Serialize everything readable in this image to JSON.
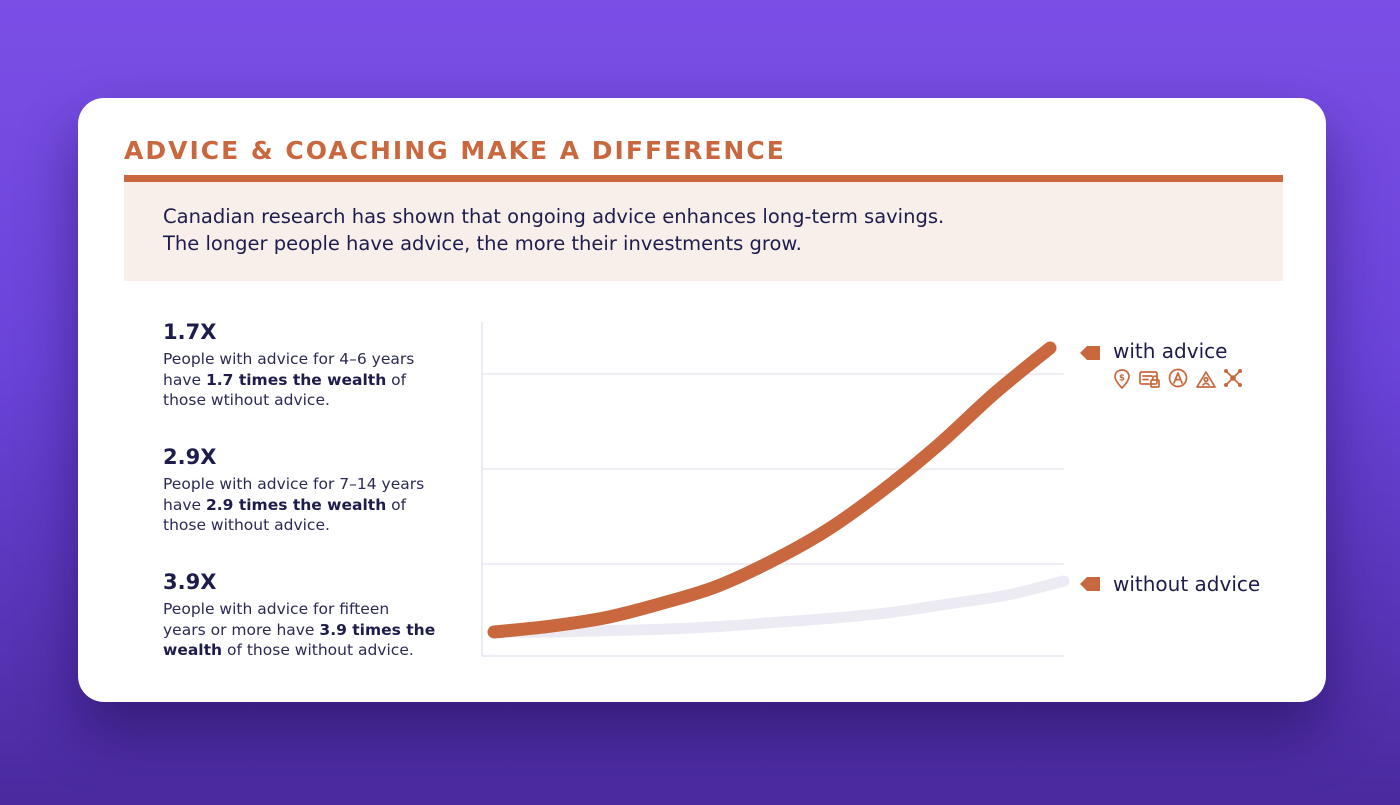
{
  "colors": {
    "accent": "#c9683e",
    "navy": "#1e1c4d",
    "intro_bg": "#f8eeea",
    "without_line": "#ecebf4",
    "grid": "#e6e4ee"
  },
  "header": {
    "title": "ADVICE & COACHING MAKE A DIFFERENCE"
  },
  "intro": {
    "line1": "Canadian research has shown that ongoing advice enhances long-term savings.",
    "line2": "The longer people have advice, the more their investments grow."
  },
  "stats": [
    {
      "value": "1.7X",
      "lines": [
        [
          {
            "t": "People with advice for 4–6 years",
            "b": false
          }
        ],
        [
          {
            "t": "have ",
            "b": false
          },
          {
            "t": "1.7 times the wealth",
            "b": true
          },
          {
            "t": " of",
            "b": false
          }
        ],
        [
          {
            "t": "those wtihout advice.",
            "b": false
          }
        ]
      ]
    },
    {
      "value": "2.9X",
      "lines": [
        [
          {
            "t": "People with advice for 7–14 years",
            "b": false
          }
        ],
        [
          {
            "t": "have ",
            "b": false
          },
          {
            "t": "2.9 times the wealth",
            "b": true
          },
          {
            "t": " of",
            "b": false
          }
        ],
        [
          {
            "t": "those without advice.",
            "b": false
          }
        ]
      ]
    },
    {
      "value": "3.9X",
      "lines": [
        [
          {
            "t": "People with advice for fifteen",
            "b": false
          }
        ],
        [
          {
            "t": "years or more have ",
            "b": false
          },
          {
            "t": "3.9 times the",
            "b": true
          }
        ],
        [
          {
            "t": "wealth",
            "b": true
          },
          {
            "t": " of those without advice.",
            "b": false
          }
        ]
      ]
    }
  ],
  "chart_data": {
    "type": "line",
    "x": [
      0,
      0.1,
      0.2,
      0.3,
      0.4,
      0.5,
      0.6,
      0.7,
      0.8,
      0.9,
      1.0
    ],
    "series": [
      {
        "name": "with advice",
        "color": "#c9683e",
        "values": [
          0.0,
          0.02,
          0.05,
          0.1,
          0.16,
          0.25,
          0.36,
          0.5,
          0.66,
          0.84,
          1.0
        ]
      },
      {
        "name": "without advice",
        "color": "#ecebf4",
        "values": [
          0.0,
          0.0,
          0.005,
          0.01,
          0.02,
          0.035,
          0.05,
          0.07,
          0.1,
          0.13,
          0.18
        ]
      }
    ],
    "ylim": [
      0,
      1.1
    ],
    "grid": true,
    "legend_position": "right, at line ends",
    "legend_icons": [
      "dollar-pin-icon",
      "id-card-lock-icon",
      "circle-a-icon",
      "mountain-person-icon",
      "network-nodes-icon"
    ]
  }
}
